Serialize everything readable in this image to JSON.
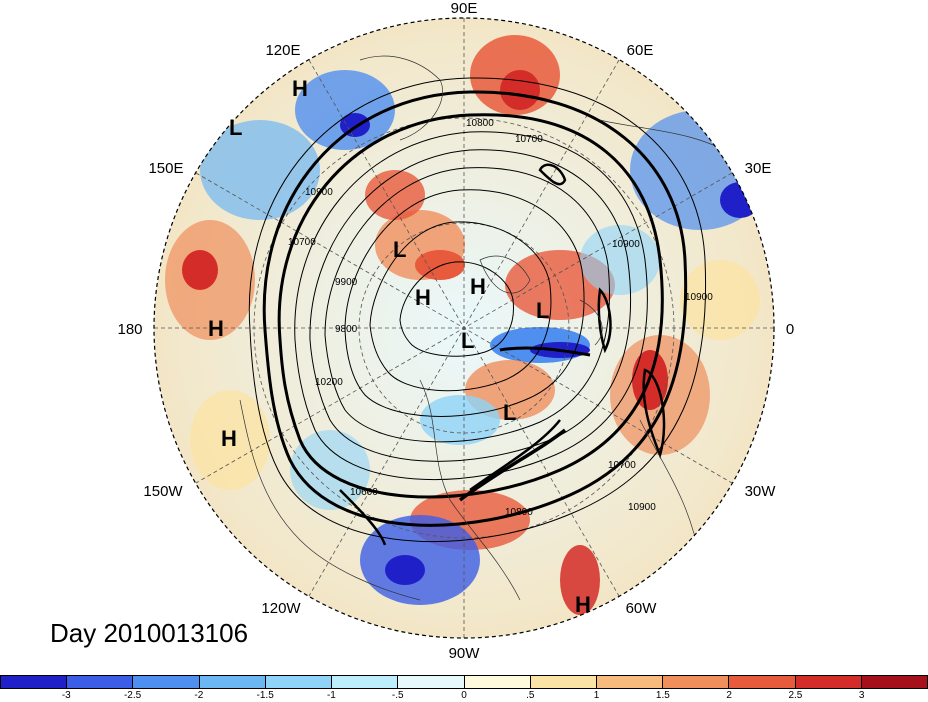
{
  "title": "Day 2010013106",
  "longitude_labels": {
    "lon90E": "90E",
    "lon120E": "120E",
    "lon60E": "60E",
    "lon150E": "150E",
    "lon30E": "30E",
    "lon180": "180",
    "lon0": "0",
    "lon150W": "150W",
    "lon30W": "30W",
    "lon120W": "120W",
    "lon60W": "60W",
    "lon90W": "90W"
  },
  "pressure_centers": [
    {
      "label": "H"
    },
    {
      "label": "L"
    },
    {
      "label": "L"
    },
    {
      "label": "H"
    },
    {
      "label": "H"
    },
    {
      "label": "L"
    },
    {
      "label": "H"
    },
    {
      "label": "L"
    },
    {
      "label": "L"
    },
    {
      "label": "H"
    },
    {
      "label": "H"
    }
  ],
  "contour_labels": {
    "c1": "10800",
    "c2": "10700",
    "c3": "10900",
    "c4": "10700",
    "c5": "9900",
    "c6": "9800",
    "c7": "10200",
    "c8": "10700",
    "c9": "10900",
    "c10": "10800",
    "c11": "10900",
    "c12": "10900",
    "c13": "10600"
  },
  "colorbar": {
    "colors": [
      "#2020c8",
      "#3c5ee6",
      "#4f8ff0",
      "#6db6f4",
      "#8fd3f8",
      "#bdeefb",
      "#e6fafc",
      "#fdfbdc",
      "#fbe3a6",
      "#f8bb7e",
      "#f08e5c",
      "#e75a3c",
      "#d42c28",
      "#a6101a"
    ],
    "tick_labels": [
      "-3",
      "-2.5",
      "-2",
      "-1.5",
      "-1",
      "-.5",
      "0",
      ".5",
      "1",
      "1.5",
      "2",
      "2.5",
      "3"
    ]
  }
}
